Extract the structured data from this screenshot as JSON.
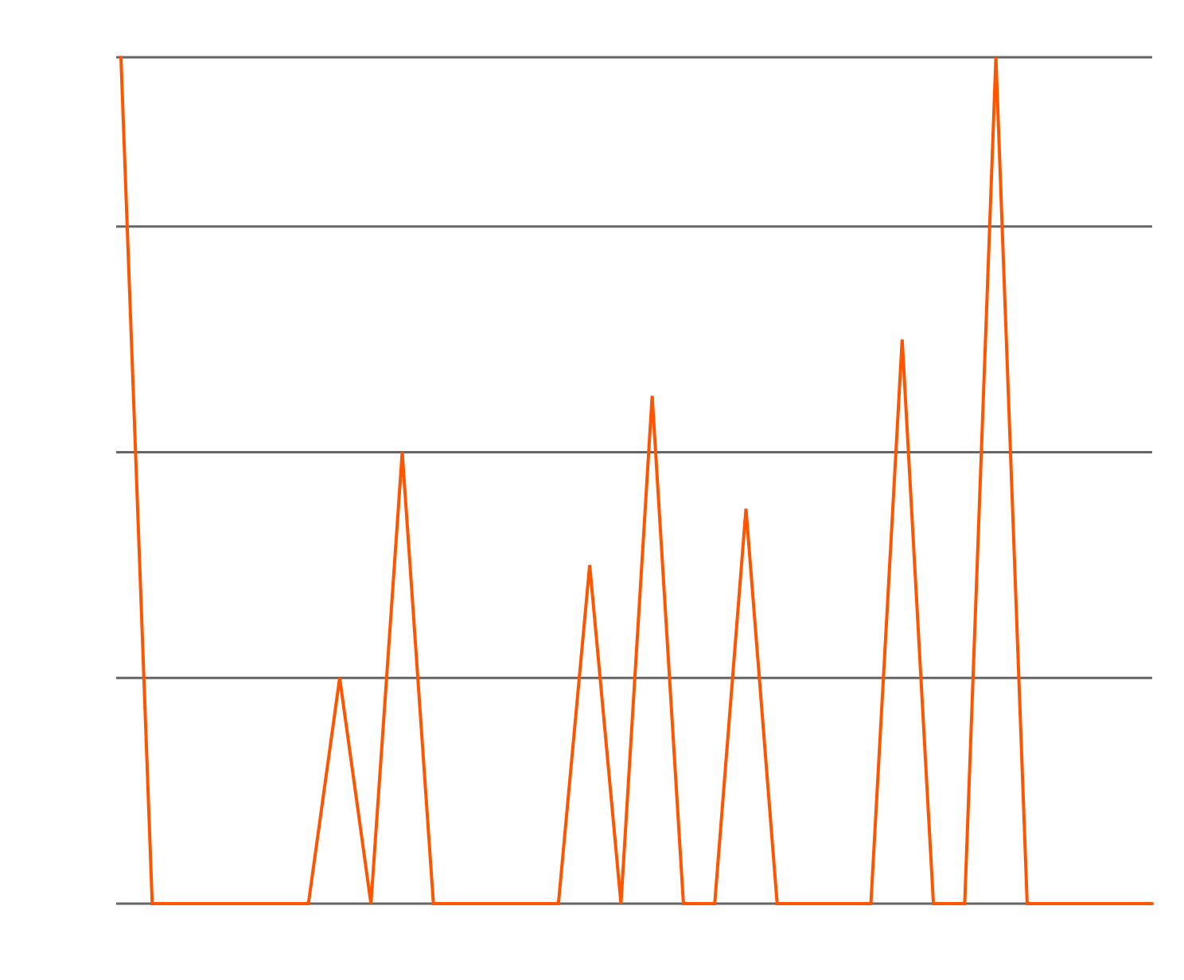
{
  "chart_data": {
    "type": "line",
    "title": "",
    "xlabel": "",
    "ylabel": "",
    "ylim": [
      0,
      3.75
    ],
    "y_gridlines": [
      0,
      1,
      2,
      3,
      3.75
    ],
    "grid": true,
    "legend": "none",
    "series_color": "#ff5500",
    "grid_color": "#666666",
    "series": [
      {
        "values": [
          3.75,
          0,
          0,
          0,
          0,
          0,
          0,
          1,
          0,
          2,
          0,
          0,
          0,
          0,
          0,
          1.5,
          0,
          2.25,
          0,
          0,
          1.75,
          0,
          0,
          0,
          0,
          2.5,
          0,
          0,
          3.75,
          0,
          0,
          0,
          0,
          0
        ]
      }
    ]
  }
}
